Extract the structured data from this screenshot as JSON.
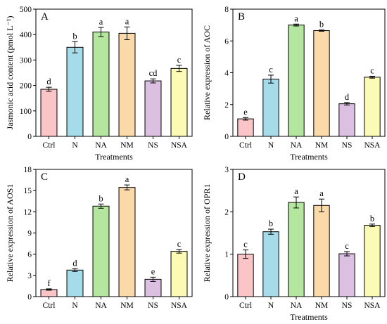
{
  "chart_data": [
    {
      "type": "bar",
      "panel": "A",
      "categories": [
        "Ctrl",
        "N",
        "NA",
        "NM",
        "NS",
        "NSA"
      ],
      "values": [
        185,
        350,
        410,
        405,
        218,
        267
      ],
      "errors": [
        8,
        22,
        18,
        25,
        8,
        12
      ],
      "letters": [
        "d",
        "b",
        "a",
        "a",
        "cd",
        "c"
      ],
      "xlabel": "Treatments",
      "ylabel": "Jasmonic acid content (pmol L⁻¹)",
      "ylim": [
        0,
        500
      ],
      "yticks": [
        "0",
        "100",
        "200",
        "300",
        "400",
        "500"
      ],
      "grid": false
    },
    {
      "type": "bar",
      "panel": "B",
      "categories": [
        "Ctrl",
        "N",
        "NA",
        "NM",
        "NS",
        "NSA"
      ],
      "values": [
        1.1,
        3.6,
        7.0,
        6.65,
        2.05,
        3.72
      ],
      "errors": [
        0.08,
        0.25,
        0.06,
        0.04,
        0.08,
        0.06
      ],
      "letters": [
        "e",
        "c",
        "a",
        "b",
        "d",
        "c"
      ],
      "xlabel": "Treatments",
      "ylabel": "Relative expression of AOC",
      "ylim": [
        0,
        8
      ],
      "yticks": [
        "0",
        "2",
        "4",
        "6",
        "8"
      ],
      "grid": false
    },
    {
      "type": "bar",
      "panel": "C",
      "categories": [
        "Ctrl",
        "N",
        "NA",
        "NM",
        "NS",
        "NSA"
      ],
      "values": [
        1.0,
        3.75,
        12.8,
        15.45,
        2.45,
        6.4
      ],
      "errors": [
        0.1,
        0.2,
        0.3,
        0.35,
        0.3,
        0.25
      ],
      "letters": [
        "f",
        "d",
        "b",
        "a",
        "e",
        "c"
      ],
      "xlabel": "",
      "ylabel": "Relative expression of AOS1",
      "ylim": [
        0,
        18
      ],
      "yticks": [
        "0",
        "3",
        "6",
        "9",
        "12",
        "15",
        "18"
      ],
      "grid": false
    },
    {
      "type": "bar",
      "panel": "D",
      "categories": [
        "Ctrl",
        "N",
        "NA",
        "NM",
        "NS",
        "NSA"
      ],
      "values": [
        1.0,
        1.53,
        2.22,
        2.15,
        1.01,
        1.68
      ],
      "errors": [
        0.1,
        0.06,
        0.13,
        0.15,
        0.05,
        0.03
      ],
      "letters": [
        "c",
        "b",
        "a",
        "a",
        "c",
        "b"
      ],
      "xlabel": "Treatments",
      "ylabel": "Relative expression of OPR1",
      "ylim": [
        0,
        3
      ],
      "yticks": [
        "0",
        "1",
        "2",
        "3"
      ],
      "grid": false
    }
  ],
  "colors": {
    "bars": [
      "#fbc4c6",
      "#a6dbe9",
      "#b5e6a0",
      "#fbd9a8",
      "#dcc0e1",
      "#fbfbb5"
    ],
    "stroke": "#000000"
  }
}
